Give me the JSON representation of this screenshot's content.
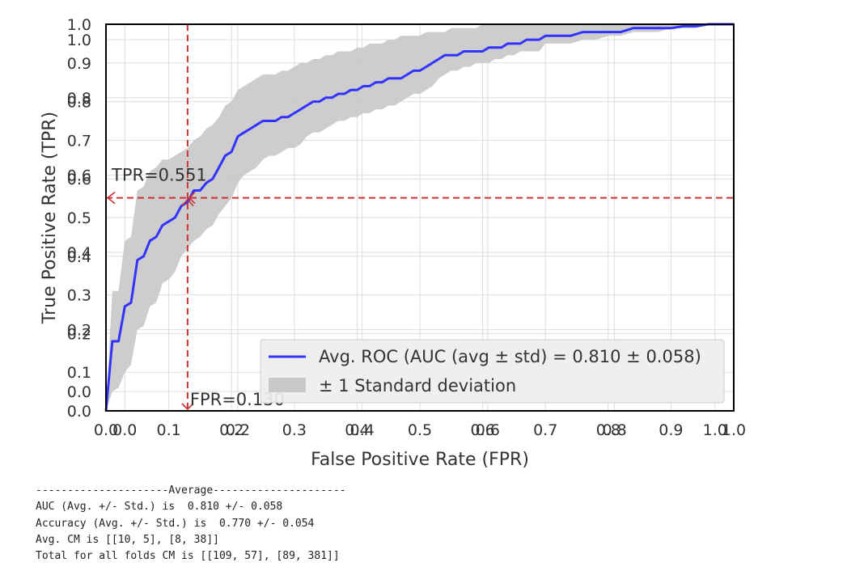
{
  "chart_data": {
    "type": "line",
    "xlabel": "False Positive Rate (FPR)",
    "ylabel": "True Positive Rate (TPR)",
    "xlim": [
      0,
      1
    ],
    "ylim": [
      0,
      1
    ],
    "grid": true,
    "legend_position": "bottom-right",
    "x_ticks": [
      {
        "value": 0.0,
        "label": "0.0"
      },
      {
        "value": 0.03,
        "label": "0.0"
      },
      {
        "value": 0.1,
        "label": "0.1"
      },
      {
        "value": 0.2,
        "label": "0.2"
      },
      {
        "value": 0.21,
        "label": "0.2"
      },
      {
        "value": 0.3,
        "label": "0.3"
      },
      {
        "value": 0.4,
        "label": "0.4"
      },
      {
        "value": 0.408,
        "label": "0.4"
      },
      {
        "value": 0.5,
        "label": "0.5"
      },
      {
        "value": 0.6,
        "label": "0.6"
      },
      {
        "value": 0.608,
        "label": "0.6"
      },
      {
        "value": 0.7,
        "label": "0.7"
      },
      {
        "value": 0.8,
        "label": "0.8"
      },
      {
        "value": 0.81,
        "label": "0.8"
      },
      {
        "value": 0.9,
        "label": "0.9"
      },
      {
        "value": 0.97,
        "label": "1.0"
      },
      {
        "value": 1.0,
        "label": "1.0"
      }
    ],
    "y_ticks": [
      {
        "value": 0.0,
        "label": "0.0"
      },
      {
        "value": 0.05,
        "label": "0.0"
      },
      {
        "value": 0.1,
        "label": "0.1"
      },
      {
        "value": 0.2,
        "label": "0.2"
      },
      {
        "value": 0.21,
        "label": "0.2"
      },
      {
        "value": 0.3,
        "label": "0.3"
      },
      {
        "value": 0.4,
        "label": "0.4"
      },
      {
        "value": 0.41,
        "label": "0.4"
      },
      {
        "value": 0.5,
        "label": "0.5"
      },
      {
        "value": 0.6,
        "label": "0.6"
      },
      {
        "value": 0.61,
        "label": "0.6"
      },
      {
        "value": 0.7,
        "label": "0.7"
      },
      {
        "value": 0.8,
        "label": "0.8"
      },
      {
        "value": 0.81,
        "label": "0.8"
      },
      {
        "value": 0.9,
        "label": "0.9"
      },
      {
        "value": 0.96,
        "label": "1.0"
      },
      {
        "value": 1.0,
        "label": "1.0"
      }
    ],
    "series": [
      {
        "name": "Avg. ROC (AUC (avg ± std) = 0.810 ± 0.058)",
        "color": "#3333ff",
        "x": [
          0,
          0.01,
          0.02,
          0.03,
          0.04,
          0.05,
          0.06,
          0.07,
          0.08,
          0.09,
          0.1,
          0.11,
          0.12,
          0.13,
          0.14,
          0.15,
          0.16,
          0.17,
          0.18,
          0.19,
          0.2,
          0.21,
          0.22,
          0.23,
          0.24,
          0.25,
          0.26,
          0.27,
          0.28,
          0.29,
          0.3,
          0.31,
          0.32,
          0.33,
          0.34,
          0.35,
          0.36,
          0.37,
          0.38,
          0.39,
          0.4,
          0.41,
          0.42,
          0.43,
          0.44,
          0.45,
          0.46,
          0.47,
          0.48,
          0.49,
          0.5,
          0.51,
          0.52,
          0.53,
          0.54,
          0.55,
          0.56,
          0.57,
          0.58,
          0.59,
          0.6,
          0.61,
          0.62,
          0.63,
          0.64,
          0.65,
          0.66,
          0.67,
          0.68,
          0.69,
          0.7,
          0.72,
          0.74,
          0.76,
          0.78,
          0.8,
          0.82,
          0.84,
          0.86,
          0.88,
          0.9,
          0.92,
          0.94,
          0.96,
          0.98,
          1.0
        ],
        "y": [
          0,
          0.18,
          0.18,
          0.27,
          0.28,
          0.39,
          0.4,
          0.44,
          0.45,
          0.48,
          0.49,
          0.5,
          0.53,
          0.54,
          0.57,
          0.57,
          0.59,
          0.6,
          0.63,
          0.66,
          0.67,
          0.71,
          0.72,
          0.73,
          0.74,
          0.75,
          0.75,
          0.75,
          0.76,
          0.76,
          0.77,
          0.78,
          0.79,
          0.8,
          0.8,
          0.81,
          0.81,
          0.82,
          0.82,
          0.83,
          0.83,
          0.84,
          0.84,
          0.85,
          0.85,
          0.86,
          0.86,
          0.86,
          0.87,
          0.88,
          0.88,
          0.89,
          0.9,
          0.91,
          0.92,
          0.92,
          0.92,
          0.93,
          0.93,
          0.93,
          0.93,
          0.94,
          0.94,
          0.94,
          0.95,
          0.95,
          0.95,
          0.96,
          0.96,
          0.96,
          0.97,
          0.97,
          0.97,
          0.98,
          0.98,
          0.98,
          0.98,
          0.99,
          0.99,
          0.99,
          0.99,
          0.995,
          0.995,
          1.0,
          1.0,
          1.0
        ]
      },
      {
        "name": "± 1 Standard deviation",
        "type": "area",
        "color": "#c8c8c8",
        "x": [
          0,
          0.01,
          0.02,
          0.03,
          0.04,
          0.05,
          0.06,
          0.07,
          0.08,
          0.09,
          0.1,
          0.11,
          0.12,
          0.13,
          0.14,
          0.15,
          0.16,
          0.17,
          0.18,
          0.19,
          0.2,
          0.21,
          0.22,
          0.23,
          0.24,
          0.25,
          0.26,
          0.27,
          0.28,
          0.29,
          0.3,
          0.31,
          0.32,
          0.33,
          0.34,
          0.35,
          0.36,
          0.37,
          0.38,
          0.39,
          0.4,
          0.41,
          0.42,
          0.43,
          0.44,
          0.45,
          0.46,
          0.47,
          0.48,
          0.49,
          0.5,
          0.51,
          0.52,
          0.53,
          0.54,
          0.55,
          0.56,
          0.57,
          0.58,
          0.59,
          0.6,
          0.61,
          0.62,
          0.63,
          0.64,
          0.65,
          0.66,
          0.67,
          0.68,
          0.69,
          0.7,
          0.72,
          0.74,
          0.76,
          0.78,
          0.8,
          0.82,
          0.84,
          0.86,
          0.88,
          0.9,
          0.92,
          0.94,
          0.96,
          0.98,
          1.0
        ],
        "lower": [
          0,
          0.05,
          0.06,
          0.1,
          0.12,
          0.21,
          0.22,
          0.27,
          0.28,
          0.33,
          0.34,
          0.36,
          0.4,
          0.42,
          0.44,
          0.45,
          0.47,
          0.48,
          0.51,
          0.53,
          0.55,
          0.59,
          0.61,
          0.62,
          0.63,
          0.65,
          0.66,
          0.66,
          0.67,
          0.68,
          0.68,
          0.69,
          0.71,
          0.72,
          0.72,
          0.73,
          0.74,
          0.75,
          0.75,
          0.76,
          0.76,
          0.77,
          0.77,
          0.78,
          0.78,
          0.79,
          0.79,
          0.8,
          0.81,
          0.82,
          0.82,
          0.83,
          0.84,
          0.86,
          0.87,
          0.88,
          0.88,
          0.89,
          0.89,
          0.9,
          0.9,
          0.9,
          0.91,
          0.91,
          0.92,
          0.92,
          0.93,
          0.93,
          0.93,
          0.93,
          0.95,
          0.95,
          0.95,
          0.96,
          0.96,
          0.97,
          0.97,
          0.98,
          0.98,
          0.98,
          0.99,
          0.99,
          0.99,
          1.0,
          1.0,
          1.0
        ],
        "upper": [
          0,
          0.31,
          0.31,
          0.44,
          0.45,
          0.57,
          0.58,
          0.62,
          0.63,
          0.65,
          0.65,
          0.66,
          0.67,
          0.68,
          0.7,
          0.71,
          0.73,
          0.74,
          0.76,
          0.79,
          0.8,
          0.83,
          0.84,
          0.85,
          0.86,
          0.87,
          0.87,
          0.87,
          0.88,
          0.88,
          0.89,
          0.9,
          0.9,
          0.91,
          0.91,
          0.92,
          0.92,
          0.93,
          0.93,
          0.93,
          0.94,
          0.94,
          0.95,
          0.95,
          0.95,
          0.96,
          0.96,
          0.97,
          0.97,
          0.97,
          0.97,
          0.98,
          0.98,
          0.98,
          0.98,
          0.99,
          0.99,
          0.99,
          0.99,
          0.99,
          1.0,
          1.0,
          1.0,
          1.0,
          1.0,
          1.0,
          1.0,
          1.0,
          1.0,
          1.0,
          1.0,
          1.0,
          1.0,
          1.0,
          1.0,
          1.0,
          1.0,
          1.0,
          1.0,
          1.0,
          1.0,
          1.0,
          1.0,
          1.0,
          1.0,
          1.0
        ]
      }
    ],
    "annotations": [
      {
        "label": "TPR=0.551",
        "axis": "y",
        "value": 0.551,
        "color": "#cc3333"
      },
      {
        "label": "FPR=0.130",
        "axis": "x",
        "value": 0.13,
        "color": "#cc3333"
      }
    ],
    "legend": [
      {
        "label": "Avg. ROC (AUC (avg ± std) = 0.810 ± 0.058)",
        "kind": "line",
        "color": "#3333ff"
      },
      {
        "label": "± 1 Standard deviation",
        "kind": "patch",
        "color": "#c8c8c8"
      }
    ]
  },
  "output": {
    "lines": [
      "---------------------Average---------------------",
      "AUC (Avg. +/- Std.) is  0.810 +/- 0.058",
      "Accuracy (Avg. +/- Std.) is  0.770 +/- 0.054",
      "Avg. CM is [[10, 5], [8, 38]]",
      "Total for all folds CM is [[109, 57], [89, 381]]"
    ]
  }
}
